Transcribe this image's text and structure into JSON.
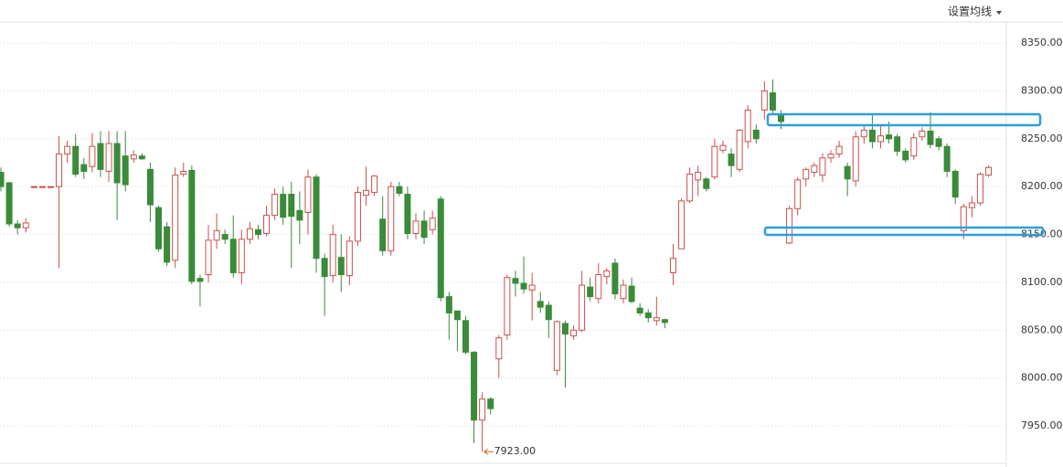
{
  "chart_data": {
    "type": "candlestick",
    "menu_label": "设置均线",
    "up_color": "#c9504d",
    "down_color": "#3a8b3a",
    "grid": true,
    "ylim": [
      7907,
      8395
    ],
    "yticks": [
      {
        "value": 7950,
        "label": "7950.00"
      },
      {
        "value": 8000,
        "label": "8000.00"
      },
      {
        "value": 8050,
        "label": "8050.00"
      },
      {
        "value": 8100,
        "label": "8100.00"
      },
      {
        "value": 8150,
        "label": "8150.00"
      },
      {
        "value": 8200,
        "label": "8200.00"
      },
      {
        "value": 8250,
        "label": "8250.00"
      },
      {
        "value": 8300,
        "label": "8300.00"
      },
      {
        "value": 8350,
        "label": "8350.00"
      }
    ],
    "open": [
      8215,
      8204,
      8161,
      8157,
      8200,
      8200,
      8200,
      8200,
      8234,
      8242,
      8223,
      8221,
      8245,
      8216,
      8245,
      8232,
      8229,
      8232,
      8218,
      8178,
      8158,
      8123,
      8213,
      8217,
      8104,
      8108,
      8144,
      8150,
      8145,
      8110,
      8145,
      8155,
      8151,
      8170,
      8192,
      8192,
      8175,
      8173,
      8210,
      8125,
      8107,
      8126,
      8107,
      8143,
      8191,
      8194,
      8166,
      8133,
      8200,
      8192,
      8151,
      8164,
      8155,
      8187,
      8085,
      8070,
      8060,
      8027,
      7956,
      7978,
      8020,
      8045,
      8104,
      8099,
      8092,
      8080,
      8076,
      8008,
      8057,
      8044,
      8050,
      8095,
      8083,
      8106,
      8120,
      8083,
      8096,
      8073,
      8068,
      8060,
      8061,
      8110,
      8135,
      8185,
      8207,
      8208,
      8210,
      8238,
      8234,
      8218,
      8247,
      8259,
      8280,
      8298,
      8275,
      8141,
      8177,
      8208,
      8215,
      8212,
      8230,
      8234,
      8221,
      8206,
      8252,
      8259,
      8247,
      8254,
      8252,
      8237,
      8232,
      8252,
      8258,
      8250,
      8242,
      8216,
      8154,
      8178,
      8183,
      8212
    ],
    "high": [
      8220,
      8205,
      8165,
      8167,
      8200,
      8200,
      8200,
      8253,
      8248,
      8255,
      8230,
      8256,
      8258,
      8258,
      8258,
      8258,
      8238,
      8235,
      8225,
      8180,
      8163,
      8220,
      8225,
      8222,
      8108,
      8160,
      8172,
      8155,
      8170,
      8155,
      8163,
      8160,
      8180,
      8198,
      8200,
      8205,
      8195,
      8218,
      8213,
      8130,
      8160,
      8150,
      8148,
      8200,
      8221,
      8212,
      8190,
      8205,
      8205,
      8200,
      8172,
      8175,
      8175,
      8190,
      8090,
      8070,
      8065,
      8028,
      7985,
      7980,
      8045,
      8108,
      8112,
      8127,
      8110,
      8090,
      8080,
      8060,
      8060,
      8055,
      8112,
      8105,
      8120,
      8115,
      8125,
      8103,
      8105,
      8078,
      8072,
      8085,
      8062,
      8140,
      8188,
      8220,
      8222,
      8210,
      8250,
      8248,
      8240,
      8260,
      8285,
      8265,
      8310,
      8312,
      8280,
      8180,
      8210,
      8220,
      8225,
      8235,
      8238,
      8248,
      8225,
      8258,
      8265,
      8275,
      8265,
      8268,
      8255,
      8240,
      8256,
      8262,
      8278,
      8253,
      8245,
      8218,
      8182,
      8190,
      8215,
      8222
    ],
    "low": [
      8195,
      8158,
      8150,
      8152,
      8200,
      8200,
      8200,
      8115,
      8225,
      8210,
      8208,
      8215,
      8210,
      8205,
      8165,
      8195,
      8225,
      8228,
      8163,
      8132,
      8117,
      8115,
      8210,
      8098,
      8075,
      8100,
      8135,
      8140,
      8105,
      8098,
      8140,
      8145,
      8148,
      8165,
      8160,
      8115,
      8140,
      8150,
      8110,
      8065,
      8100,
      8090,
      8097,
      8138,
      8180,
      8190,
      8128,
      8128,
      8190,
      8145,
      8145,
      8140,
      8150,
      8080,
      8040,
      8028,
      8025,
      7932,
      7923,
      7962,
      8000,
      8040,
      8085,
      8088,
      8060,
      8068,
      8042,
      8003,
      7990,
      8040,
      8048,
      8080,
      8078,
      8098,
      8082,
      8078,
      8078,
      8065,
      8058,
      8055,
      8052,
      8097,
      8135,
      8183,
      8190,
      8195,
      8207,
      8235,
      8210,
      8215,
      8240,
      8245,
      8270,
      8275,
      8260,
      8140,
      8170,
      8200,
      8210,
      8205,
      8225,
      8230,
      8190,
      8200,
      8245,
      8240,
      8240,
      8245,
      8232,
      8225,
      8228,
      8248,
      8240,
      8238,
      8210,
      8182,
      8145,
      8168,
      8180,
      8210
    ],
    "close": [
      8200,
      8161,
      8157,
      8162,
      8200,
      8200,
      8200,
      8234,
      8242,
      8213,
      8216,
      8242,
      8218,
      8245,
      8204,
      8202,
      8233,
      8229,
      8181,
      8135,
      8121,
      8212,
      8216,
      8101,
      8101,
      8144,
      8154,
      8145,
      8110,
      8145,
      8156,
      8150,
      8170,
      8192,
      8168,
      8169,
      8165,
      8210,
      8125,
      8106,
      8150,
      8108,
      8143,
      8194,
      8196,
      8211,
      8133,
      8200,
      8193,
      8151,
      8164,
      8147,
      8167,
      8084,
      8068,
      8061,
      8027,
      7956,
      7978,
      7968,
      8042,
      8105,
      8099,
      8093,
      8097,
      8074,
      8061,
      8059,
      8046,
      8050,
      8097,
      8085,
      8108,
      8112,
      8088,
      8097,
      8080,
      8068,
      8063,
      8063,
      8058,
      8125,
      8185,
      8213,
      8215,
      8198,
      8242,
      8243,
      8222,
      8259,
      8280,
      8250,
      8300,
      8280,
      8268,
      8177,
      8207,
      8218,
      8222,
      8230,
      8234,
      8242,
      8208,
      8252,
      8259,
      8247,
      8253,
      8250,
      8237,
      8228,
      8251,
      8258,
      8244,
      8242,
      8216,
      8189,
      8179,
      8183,
      8213,
      8220
    ],
    "annotation": {
      "value": 7923,
      "label": "7923.00",
      "color": "#c0651e"
    }
  }
}
